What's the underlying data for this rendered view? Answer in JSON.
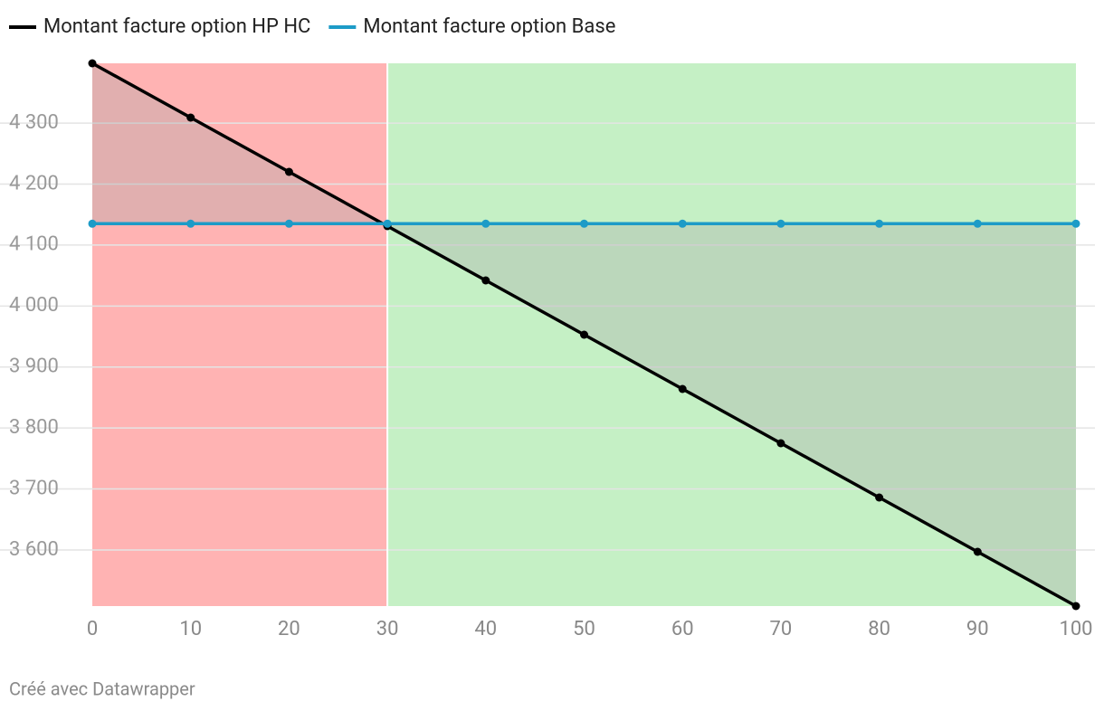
{
  "chart_data": {
    "type": "line",
    "x": [
      0,
      10,
      20,
      30,
      40,
      50,
      60,
      70,
      80,
      90,
      100
    ],
    "series": [
      {
        "name": "Montant facture option HP HC",
        "color": "#000000",
        "values": [
          4398,
          4309,
          4220,
          4131,
          4042,
          3953,
          3864,
          3775,
          3686,
          3597,
          3508
        ]
      },
      {
        "name": "Montant facture option Base",
        "color": "#1d9bc7",
        "values": [
          4135,
          4135,
          4135,
          4135,
          4135,
          4135,
          4135,
          4135,
          4135,
          4135,
          4135
        ]
      }
    ],
    "xlim": [
      0,
      100
    ],
    "xticks": [
      0,
      10,
      20,
      30,
      40,
      50,
      60,
      70,
      80,
      90,
      100
    ],
    "ylim": [
      3508,
      4398
    ],
    "yticks": [
      {
        "value": 3600,
        "label": "3 600"
      },
      {
        "value": 3700,
        "label": "3 700"
      },
      {
        "value": 3800,
        "label": "3 800"
      },
      {
        "value": 3900,
        "label": "3 900"
      },
      {
        "value": 4000,
        "label": "4 000"
      },
      {
        "value": 4100,
        "label": "4 100"
      },
      {
        "value": 4200,
        "label": "4 200"
      },
      {
        "value": 4300,
        "label": "4 300"
      }
    ],
    "shaded_ranges": [
      {
        "from": 0,
        "to": 30,
        "color": "#ffb3b3"
      },
      {
        "from": 30,
        "to": 100,
        "color": "#c5f0c5"
      }
    ],
    "fill_between": "#a9a9a9",
    "grid": true,
    "footer": "Créé avec Datawrapper"
  }
}
